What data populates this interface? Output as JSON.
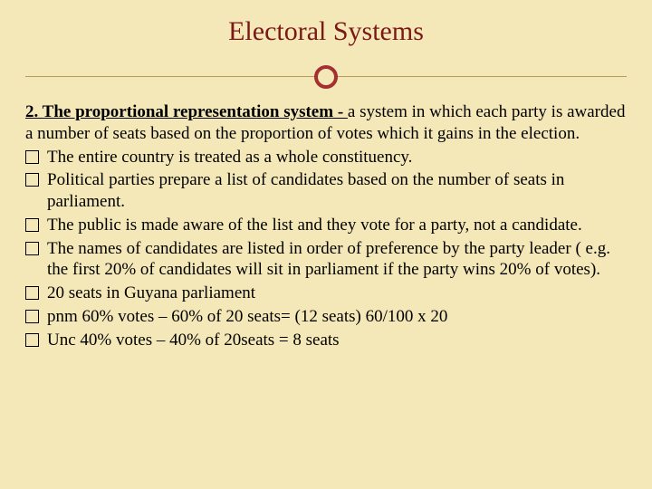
{
  "slide": {
    "background_color": "#f5e8b8",
    "title": {
      "text": "Electoral Systems",
      "color": "#7a1818",
      "fontsize": 30
    },
    "divider": {
      "line_color": "#b89a5a",
      "circle_border_color": "#a43030",
      "circle_border_width": 4,
      "circle_diameter": 26
    },
    "body_fontsize": 19,
    "lead": {
      "bold_text": "2. The proportional representation system  - ",
      "rest": "a system in which each party is awarded a number of seats based on the proportion of votes which it gains in the election."
    },
    "bullets": [
      "The entire country is treated as a whole constituency.",
      "Political parties prepare a list of candidates based on the number of seats in parliament.",
      "The public is made aware of the list and they vote for a party, not a candidate.",
      "The names of candidates are listed in order of preference by the party leader ( e.g. the first 20% of candidates will sit in parliament if the party wins 20% of votes).",
      "20 seats in Guyana parliament",
      "pnm 60% votes – 60% of 20 seats= (12 seats) 60/100 x 20",
      "Unc 40% votes – 40% of 20seats = 8 seats"
    ]
  }
}
